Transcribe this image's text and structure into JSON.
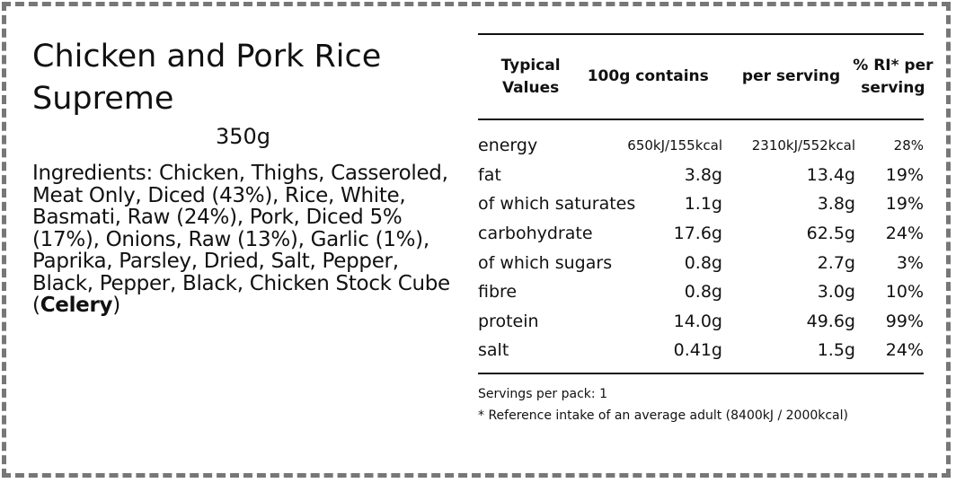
{
  "product": {
    "title": "Chicken and Pork Rice Supreme",
    "weight": "350g",
    "ingredients_prefix": "Ingredients: Chicken, Thighs, Casseroled, Meat Only, Diced (43%), Rice, White, Basmati, Raw (24%), Pork, Diced 5% (17%), Onions, Raw (13%), Garlic (1%), Paprika, Parsley, Dried, Salt, Pepper, Black, Pepper, Black, Chicken Stock Cube (",
    "allergen": "Celery",
    "ingredients_suffix": ")"
  },
  "nutrition": {
    "headers": [
      "Typical Values",
      "100g contains",
      "per serving",
      "% RI* per serving"
    ],
    "rows": [
      [
        "energy",
        "650kJ/155kcal",
        "2310kJ/552kcal",
        "28%"
      ],
      [
        "fat",
        "3.8g",
        "13.4g",
        "19%"
      ],
      [
        "of which saturates",
        "1.1g",
        "3.8g",
        "19%"
      ],
      [
        "carbohydrate",
        "17.6g",
        "62.5g",
        "24%"
      ],
      [
        "of which sugars",
        "0.8g",
        "2.7g",
        "3%"
      ],
      [
        "fibre",
        "0.8g",
        "3.0g",
        "10%"
      ],
      [
        "protein",
        "14.0g",
        "49.6g",
        "99%"
      ],
      [
        "salt",
        "0.41g",
        "1.5g",
        "24%"
      ]
    ],
    "servings": "Servings per pack: 1",
    "footnote": "* Reference intake of an average adult (8400kJ / 2000kcal)"
  }
}
